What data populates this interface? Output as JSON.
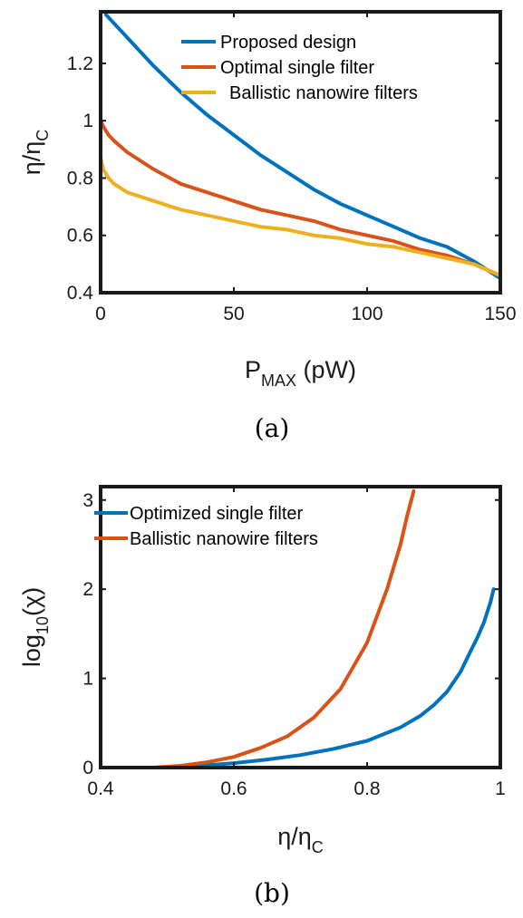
{
  "chart_data": [
    {
      "type": "line",
      "caption": "(a)",
      "xlabel": {
        "base": "P",
        "sub": "MAX",
        "suffix": " (pW)"
      },
      "ylabel": {
        "base": "η/η",
        "sub": "C"
      },
      "xlim": [
        0,
        150
      ],
      "ylim": [
        0.4,
        1.38
      ],
      "xticks": [
        0,
        50,
        100,
        150
      ],
      "xtick_labels": [
        "0",
        "50",
        "100",
        "150"
      ],
      "yticks": [
        0.4,
        0.6,
        0.8,
        1,
        1.2
      ],
      "ytick_labels": [
        "0.4",
        "0.6",
        "0.8",
        "1",
        "1.2"
      ],
      "grid": false,
      "legend_position": "top-right",
      "series": [
        {
          "name": "Proposed design",
          "color": "#0072BD",
          "x": [
            2,
            5,
            10,
            20,
            30,
            40,
            50,
            60,
            70,
            80,
            90,
            100,
            110,
            120,
            130,
            140,
            150
          ],
          "y": [
            1.37,
            1.34,
            1.29,
            1.19,
            1.1,
            1.02,
            0.95,
            0.88,
            0.82,
            0.76,
            0.71,
            0.67,
            0.63,
            0.59,
            0.56,
            0.51,
            0.45
          ]
        },
        {
          "name": "Optimal single filter",
          "color": "#D95319",
          "x": [
            0,
            1,
            3,
            5,
            10,
            20,
            30,
            40,
            50,
            60,
            70,
            80,
            90,
            100,
            110,
            120,
            130,
            140,
            150
          ],
          "y": [
            1.0,
            0.98,
            0.95,
            0.93,
            0.89,
            0.83,
            0.78,
            0.75,
            0.72,
            0.69,
            0.67,
            0.65,
            0.62,
            0.6,
            0.58,
            0.55,
            0.53,
            0.5,
            0.46
          ]
        },
        {
          "name": "Ballistic nanowire filters",
          "color": "#EDB120",
          "x": [
            0,
            1,
            3,
            5,
            10,
            20,
            30,
            40,
            50,
            60,
            70,
            80,
            90,
            100,
            110,
            120,
            130,
            140,
            150
          ],
          "y": [
            0.87,
            0.83,
            0.8,
            0.78,
            0.75,
            0.72,
            0.69,
            0.67,
            0.65,
            0.63,
            0.62,
            0.6,
            0.59,
            0.57,
            0.56,
            0.54,
            0.52,
            0.5,
            0.46
          ]
        }
      ]
    },
    {
      "type": "line",
      "caption": "(b)",
      "xlabel": {
        "base": "η/η",
        "sub": "C",
        "suffix": ""
      },
      "ylabel": {
        "base": "log",
        "sub": "10",
        "suffix": "(χ)"
      },
      "xlim": [
        0.4,
        1
      ],
      "ylim": [
        0,
        3.15
      ],
      "xticks": [
        0.4,
        0.6,
        0.8,
        1
      ],
      "xtick_labels": [
        "0.4",
        "0.6",
        "0.8",
        "1"
      ],
      "yticks": [
        0,
        1,
        2,
        3
      ],
      "ytick_labels": [
        "0",
        "1",
        "2",
        "3"
      ],
      "grid": false,
      "legend_position": "top-left",
      "series": [
        {
          "name": "Optimized single filter",
          "color": "#0072BD",
          "x": [
            0.48,
            0.55,
            0.6,
            0.65,
            0.7,
            0.75,
            0.8,
            0.85,
            0.88,
            0.9,
            0.92,
            0.94,
            0.955,
            0.965,
            0.975,
            0.985,
            0.99
          ],
          "y": [
            0.0,
            0.02,
            0.05,
            0.09,
            0.14,
            0.21,
            0.3,
            0.45,
            0.58,
            0.7,
            0.85,
            1.07,
            1.3,
            1.45,
            1.62,
            1.85,
            2.0
          ]
        },
        {
          "name": "Ballistic nanowire filters",
          "color": "#D95319",
          "x": [
            0.48,
            0.52,
            0.56,
            0.6,
            0.64,
            0.68,
            0.72,
            0.76,
            0.8,
            0.83,
            0.85,
            0.86,
            0.87
          ],
          "y": [
            0.0,
            0.02,
            0.06,
            0.12,
            0.22,
            0.35,
            0.56,
            0.88,
            1.4,
            2.0,
            2.5,
            2.82,
            3.1
          ]
        }
      ]
    }
  ]
}
